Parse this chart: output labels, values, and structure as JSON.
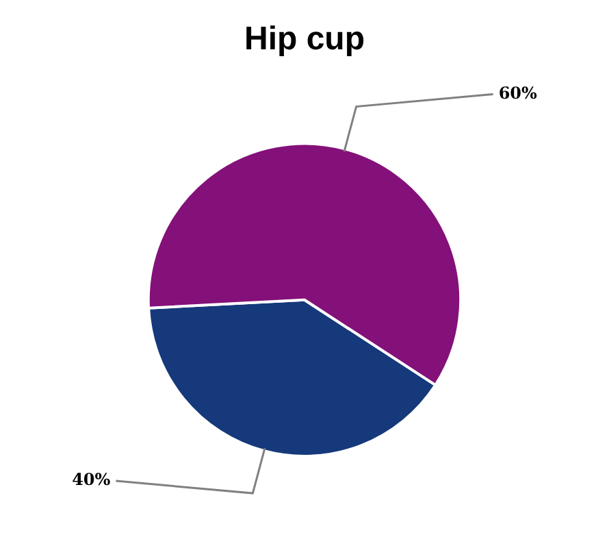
{
  "chart_data": {
    "type": "pie",
    "title": "Hip cup",
    "categories": [
      null,
      null
    ],
    "values": [
      40,
      60
    ],
    "colors": [
      "#15397a",
      "#841079"
    ],
    "value_labels": [
      "40%",
      "60%"
    ],
    "legend": false
  }
}
